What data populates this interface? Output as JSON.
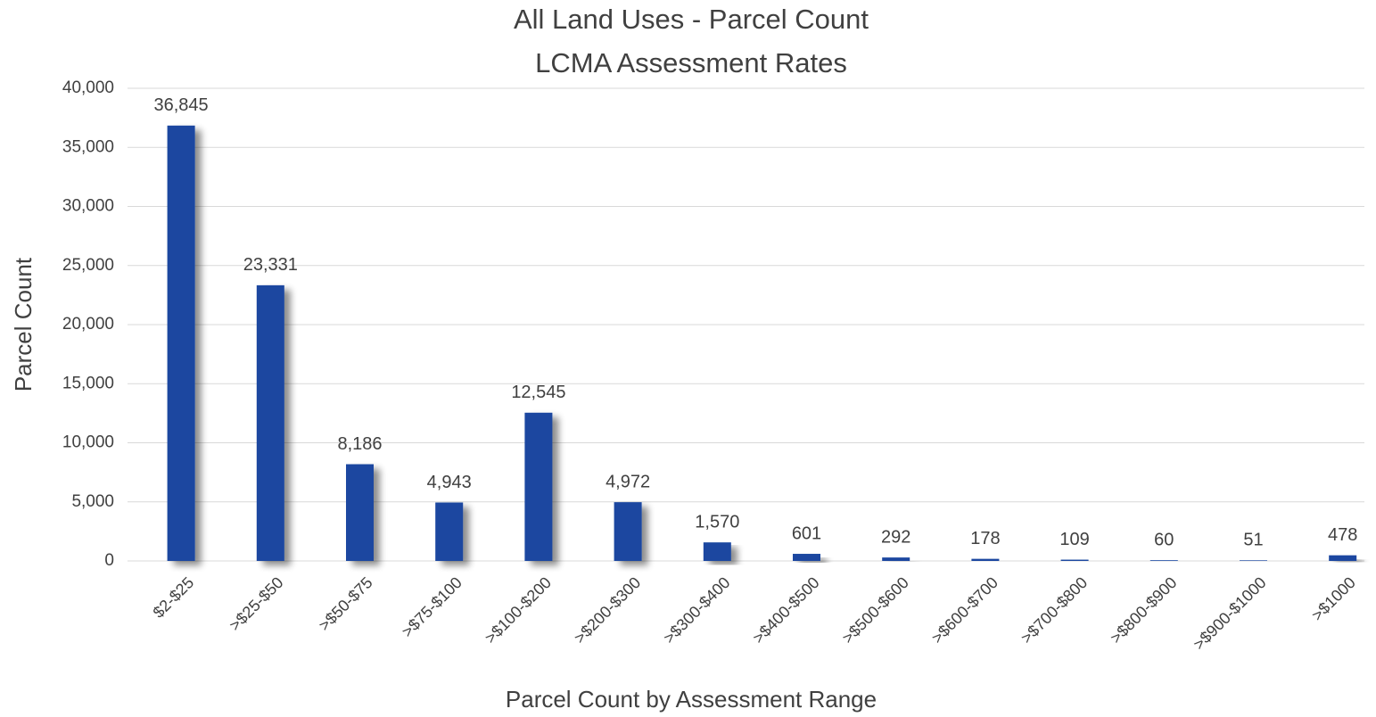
{
  "chart_data": {
    "type": "bar",
    "title": "All Land Uses - Parcel Count",
    "subtitle": "LCMA Assessment Rates",
    "x_label": "Parcel Count by Assessment Range",
    "y_label": "Parcel Count",
    "categories": [
      "$2-$25",
      ">$25-$50",
      ">$50-$75",
      ">$75-$100",
      ">$100-$200",
      ">$200-$300",
      ">$300-$400",
      ">$400-$500",
      ">$500-$600",
      ">$600-$700",
      ">$700-$800",
      ">$800-$900",
      ">$900-$1000",
      ">$1000"
    ],
    "values": [
      36845,
      23331,
      8186,
      4943,
      12545,
      4972,
      1570,
      601,
      292,
      178,
      109,
      60,
      51,
      478
    ],
    "value_labels": [
      "36,845",
      "23,331",
      "8,186",
      "4,943",
      "12,545",
      "4,972",
      "1,570",
      "601",
      "292",
      "178",
      "109",
      "60",
      "51",
      "478"
    ],
    "color": "#1a47a0",
    "ylim": [
      0,
      40000
    ],
    "yticks": [
      0,
      {
        "value": 5000,
        "label": "5,000"
      },
      {
        "value": 10000,
        "label": "10,000"
      },
      {
        "value": 15000,
        "label": "15,000"
      },
      {
        "value": 20000,
        "label": "20,000"
      },
      {
        "value": 25000,
        "label": "25,000"
      },
      {
        "value": 30000,
        "label": "30,000"
      },
      {
        "value": 35000,
        "label": "35,000"
      },
      {
        "value": 40000,
        "label": "40,000"
      }
    ],
    "grid": true
  }
}
